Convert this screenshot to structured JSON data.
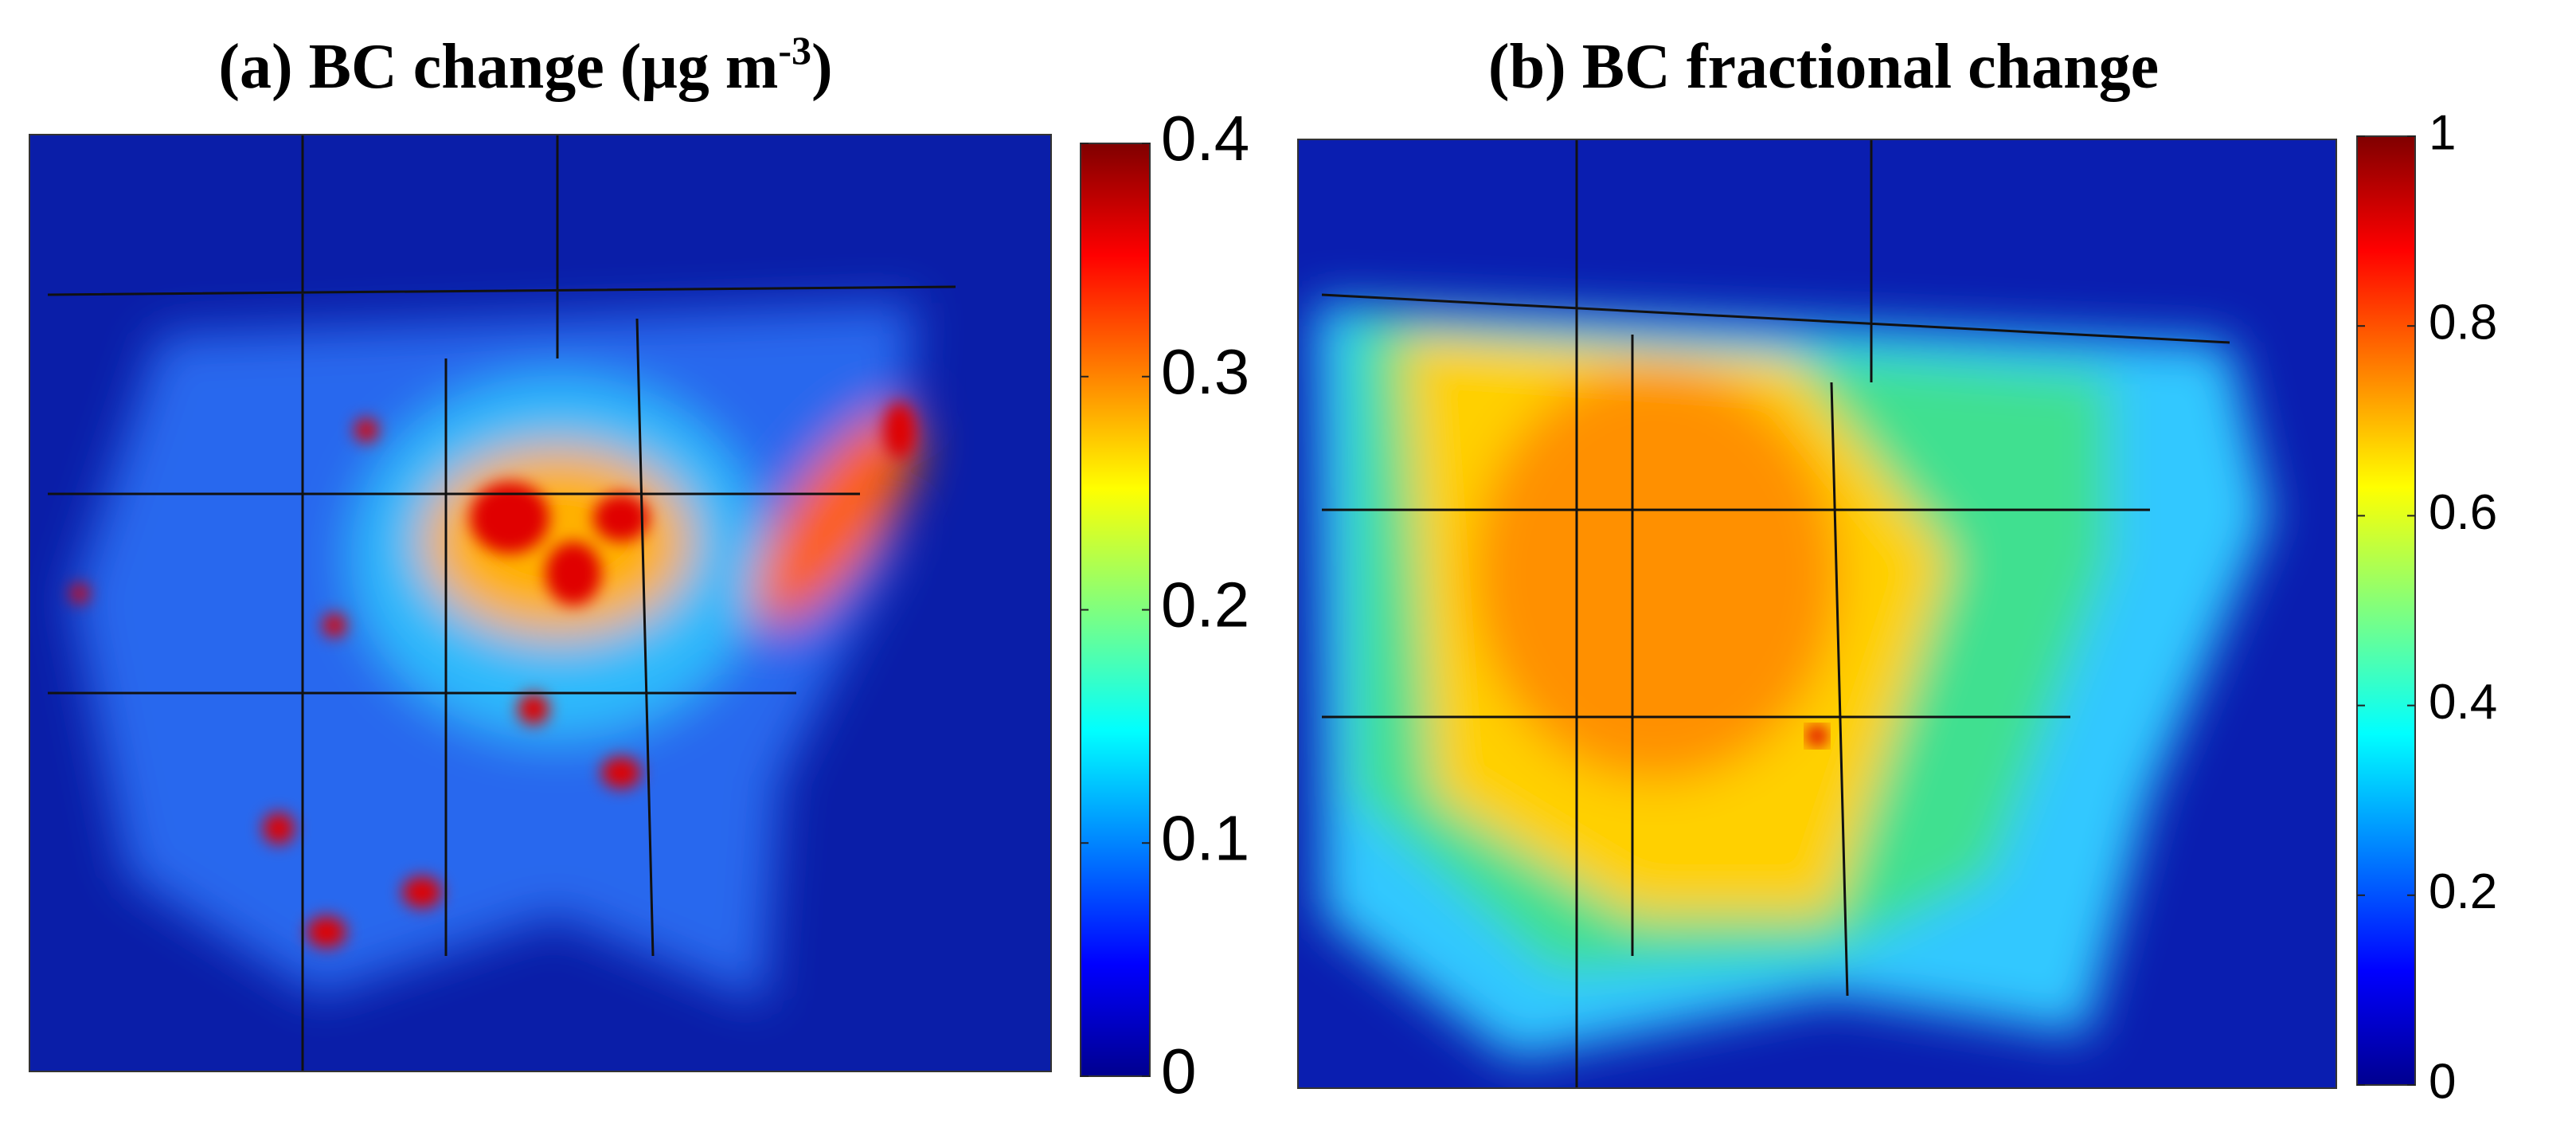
{
  "panels": [
    {
      "title": [
        "(a) BC change (μg m",
        "-3",
        ")"
      ],
      "colorbar": {
        "lim": [
          0,
          0.4
        ],
        "ticks": [
          0,
          0.1,
          0.2,
          0.3,
          0.4
        ]
      }
    },
    {
      "title": [
        "(b) BC fractional change"
      ],
      "colorbar": {
        "lim": [
          0,
          1
        ],
        "ticks": [
          0,
          0.2,
          0.4,
          0.6,
          0.8,
          1
        ]
      }
    }
  ]
}
